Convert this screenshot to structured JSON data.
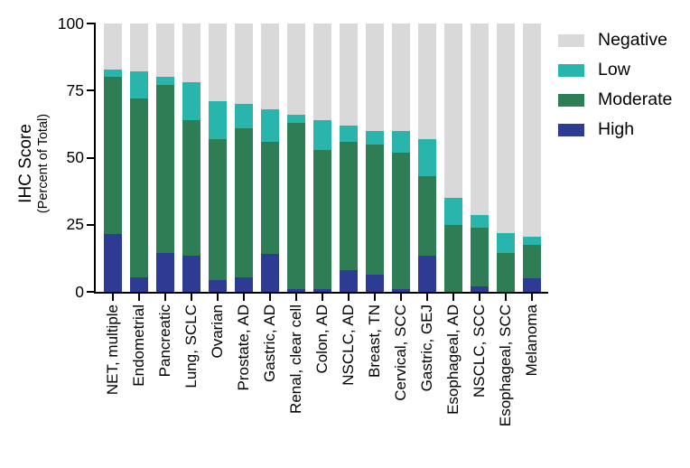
{
  "chart_data": {
    "type": "bar",
    "stacked": true,
    "title": "",
    "ylabel": "IHC Score",
    "ylabel_sub": "(Percent of Total)",
    "ylim": [
      0,
      100
    ],
    "yticks": [
      0,
      25,
      50,
      75,
      100
    ],
    "grid": false,
    "categories": [
      "NET, multiple",
      "Endometrial",
      "Pancreatic",
      "Lung, SCLC",
      "Ovarian",
      "Prostate, AD",
      "Gastric, AD",
      "Renal, clear cell",
      "Colon, AD",
      "NSCLC, AD",
      "Breast, TN",
      "Cervical, SCC",
      "Gastric, GEJ",
      "Esophageal, AD",
      "NSCLC, SCC",
      "Esophageal, SCC",
      "Melanoma"
    ],
    "series": [
      {
        "name": "High",
        "color": "#2e3b92",
        "values": [
          21.5,
          5.5,
          14.5,
          13.5,
          4.5,
          5.5,
          14,
          1,
          1,
          8,
          6.5,
          1,
          13.5,
          0,
          2,
          0,
          5
        ]
      },
      {
        "name": "Moderate",
        "color": "#2f7d55",
        "values": [
          58.5,
          66.5,
          62.5,
          50.5,
          52.5,
          55.5,
          42,
          62,
          52,
          48,
          48.5,
          51,
          29.5,
          25,
          22,
          14.5,
          12.5
        ]
      },
      {
        "name": "Low",
        "color": "#2ab5ac",
        "values": [
          3,
          10,
          3,
          14,
          14,
          9,
          12,
          3,
          11,
          6,
          5,
          8,
          14,
          10,
          4.5,
          7.5,
          3
        ]
      },
      {
        "name": "Negative",
        "color": "#d9d9d9",
        "values": [
          17,
          18,
          20,
          22,
          29,
          30,
          32,
          34,
          36,
          38,
          40,
          40,
          43,
          65,
          71.5,
          78,
          79.5
        ]
      }
    ],
    "legend": {
      "position": "right",
      "order": [
        "Negative",
        "Low",
        "Moderate",
        "High"
      ]
    }
  }
}
